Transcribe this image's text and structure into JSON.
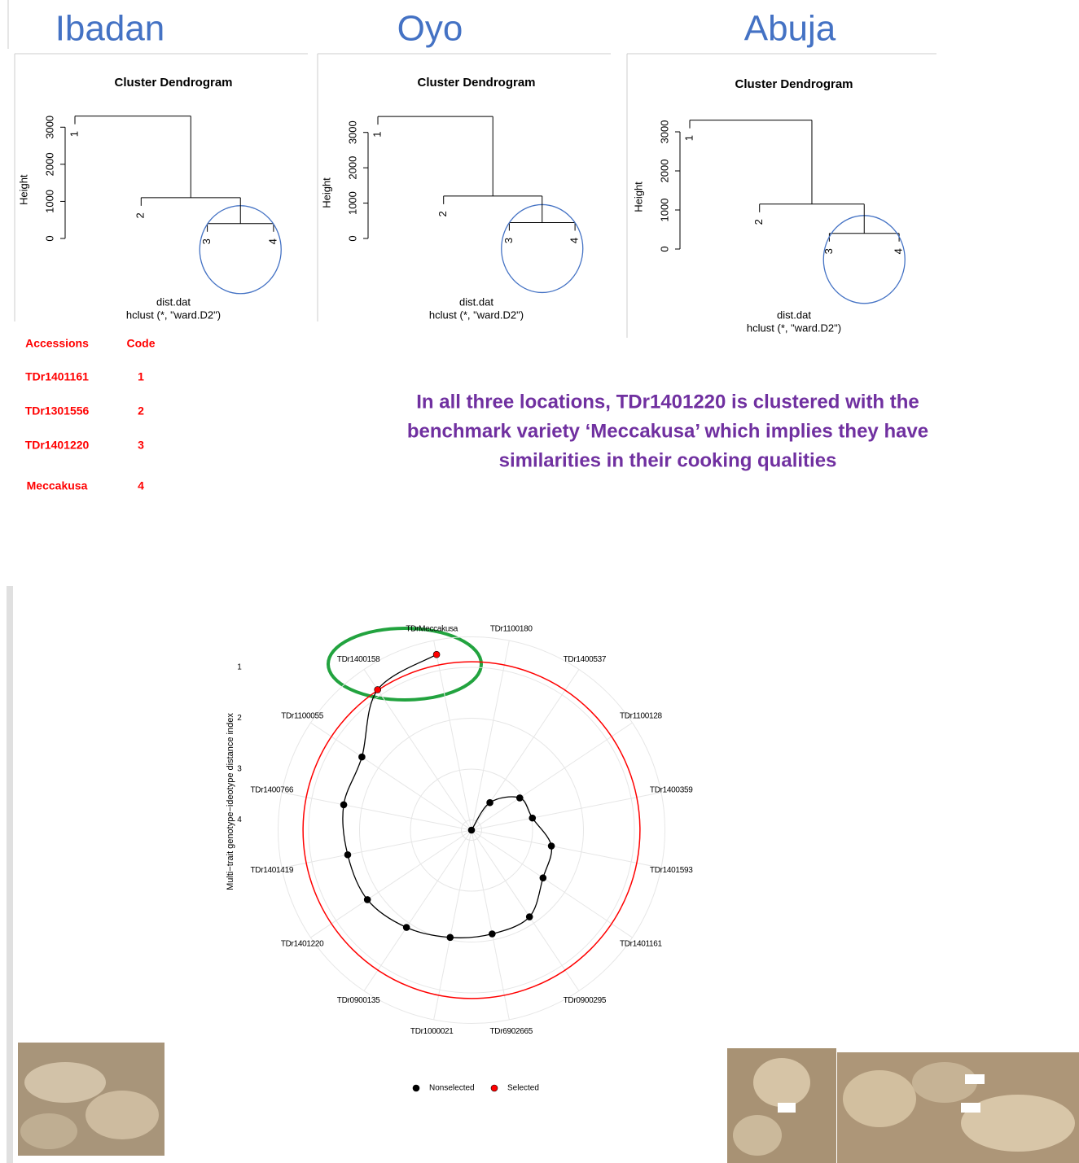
{
  "chart_data": [
    {
      "type": "dendrogram",
      "location": "Ibadan",
      "title": "Cluster Dendrogram",
      "ylabel": "Height",
      "xlabel": "dist.dat",
      "sublabel": "hclust (*, \"ward.D2\")",
      "ylim": [
        0,
        3500
      ],
      "yticks": [
        0,
        1000,
        2000,
        3000
      ],
      "tree": {
        "height": 3300,
        "children": [
          {
            "label": "1"
          },
          {
            "height": 1100,
            "children": [
              {
                "label": "2"
              },
              {
                "height": 400,
                "children": [
                  {
                    "label": "3"
                  },
                  {
                    "label": "4"
                  }
                ]
              }
            ]
          }
        ]
      }
    },
    {
      "type": "dendrogram",
      "location": "Oyo",
      "title": "Cluster Dendrogram",
      "ylabel": "Height",
      "xlabel": "dist.dat",
      "sublabel": "hclust (*, \"ward.D2\")",
      "ylim": [
        0,
        3500
      ],
      "yticks": [
        0,
        1000,
        2000,
        3000
      ],
      "tree": {
        "height": 3450,
        "children": [
          {
            "label": "1"
          },
          {
            "height": 1200,
            "children": [
              {
                "label": "2"
              },
              {
                "height": 450,
                "children": [
                  {
                    "label": "3"
                  },
                  {
                    "label": "4"
                  }
                ]
              }
            ]
          }
        ]
      }
    },
    {
      "type": "dendrogram",
      "location": "Abuja",
      "title": "Cluster Dendrogram",
      "ylabel": "Height",
      "xlabel": "dist.dat",
      "sublabel": "hclust (*, \"ward.D2\")",
      "ylim": [
        0,
        3500
      ],
      "yticks": [
        0,
        1000,
        2000,
        3000
      ],
      "tree": {
        "height": 3300,
        "children": [
          {
            "label": "1"
          },
          {
            "height": 1150,
            "children": [
              {
                "label": "2"
              },
              {
                "height": 400,
                "children": [
                  {
                    "label": "3"
                  },
                  {
                    "label": "4"
                  }
                ]
              }
            ]
          }
        ]
      }
    },
    {
      "type": "radar",
      "ylabel": "Multi−trait genotype−ideotype distance index",
      "categories": [
        "TDr1100180",
        "TDr1400537",
        "TDr1100128",
        "TDr1400359",
        "TDr1401593",
        "TDr1401161",
        "TDr0900295",
        "TDr6902665",
        "TDr1000021",
        "TDr0900135",
        "TDr1401220",
        "TDr1401419",
        "TDr1400766",
        "TDr1100055",
        "TDr1400158",
        "TDrMeccakusa"
      ],
      "series": [
        {
          "name": "Nonselected",
          "color": "#000000",
          "values": [
            4.2,
            3.55,
            3.06,
            2.98,
            2.6,
            2.51,
            2.15,
            2.12,
            2.05,
            1.9,
            1.74,
            1.72,
            1.64,
            1.61,
            null,
            null
          ]
        },
        {
          "name": "Selected",
          "color": "#ff0000",
          "values": [
            null,
            null,
            null,
            null,
            null,
            null,
            null,
            null,
            null,
            null,
            null,
            null,
            null,
            null,
            0.88,
            0.68
          ]
        }
      ],
      "ylim": [
        4.2,
        0.4
      ],
      "yticks": [
        1,
        2,
        3,
        4
      ],
      "cutoff": 0.89,
      "cutoff_color": "#ff0000",
      "grid": true
    }
  ],
  "accessions": {
    "header": [
      "Accessions",
      "Code"
    ],
    "rows": [
      [
        "TDr1401161",
        "1"
      ],
      [
        "TDr1301556",
        "2"
      ],
      [
        "TDr1401220",
        "3"
      ],
      [
        "Meccakusa",
        "4"
      ]
    ]
  },
  "conclusion": [
    "In all three locations, TDr1401220 is clustered with the",
    "benchmark variety ‘Meccakusa’ which implies they have",
    "similarities in their cooking qualities"
  ]
}
